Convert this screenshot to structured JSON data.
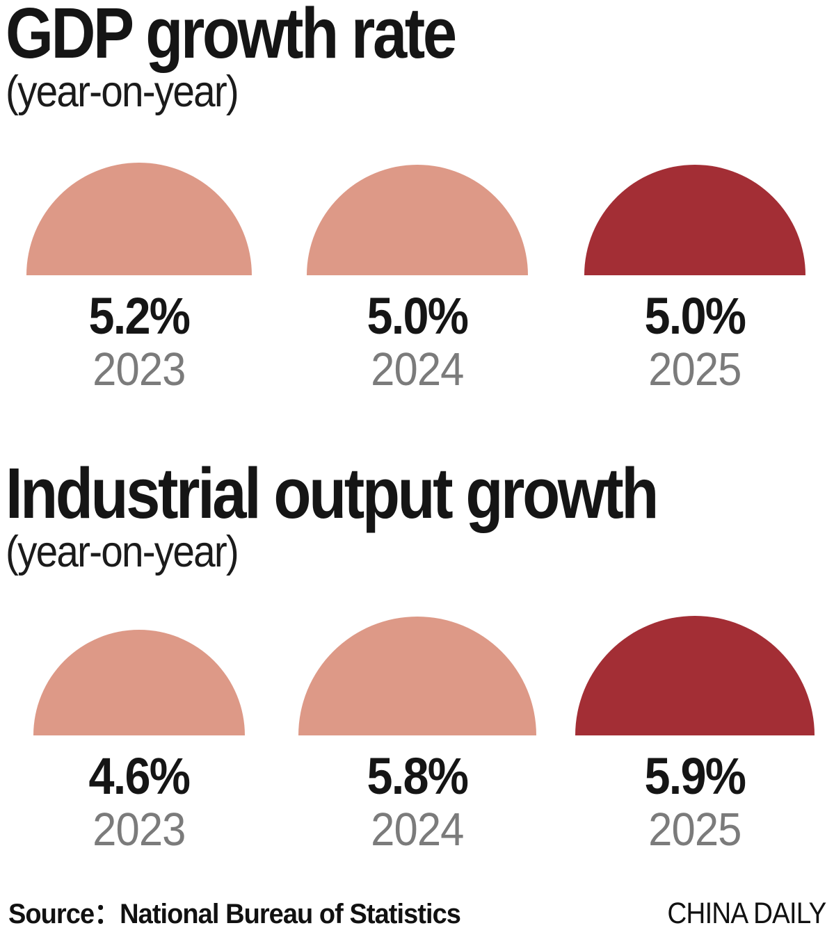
{
  "page": {
    "background": "#ffffff"
  },
  "colors": {
    "past": "#DD9987",
    "current": "#A32E35",
    "value_label": "#151515",
    "year_label": "#7b7b7b",
    "title": "#151515"
  },
  "chart_data": [
    {
      "type": "bar",
      "shape": "semicircle",
      "title": "GDP growth rate",
      "subtitle": "(year-on-year)",
      "unit": "%",
      "categories": [
        "2023",
        "2024",
        "2025"
      ],
      "values": [
        5.2,
        5.0,
        5.0
      ],
      "layout_hints": {
        "radius_proportional_to": "sqrt(value)",
        "legend": "none",
        "grid": false
      },
      "items": [
        {
          "label": "5.2%",
          "year": "2023",
          "color": "past"
        },
        {
          "label": "5.0%",
          "year": "2024",
          "color": "past"
        },
        {
          "label": "5.0%",
          "year": "2025",
          "color": "current"
        }
      ]
    },
    {
      "type": "bar",
      "shape": "semicircle",
      "title": "Industrial output growth",
      "subtitle": "(year-on-year)",
      "unit": "%",
      "categories": [
        "2023",
        "2024",
        "2025"
      ],
      "values": [
        4.6,
        5.8,
        5.9
      ],
      "layout_hints": {
        "radius_proportional_to": "sqrt(value)",
        "legend": "none",
        "grid": false
      },
      "items": [
        {
          "label": "4.6%",
          "year": "2023",
          "color": "past"
        },
        {
          "label": "5.8%",
          "year": "2024",
          "color": "past"
        },
        {
          "label": "5.9%",
          "year": "2025",
          "color": "current"
        }
      ]
    }
  ],
  "footer": {
    "source": "Source：National Bureau of Statistics",
    "credit": "CHINA DAILY"
  }
}
